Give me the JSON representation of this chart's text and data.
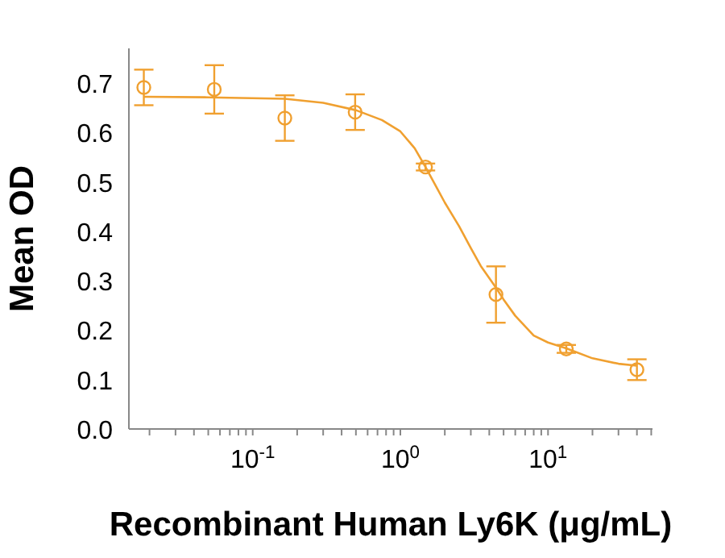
{
  "chart_data": {
    "type": "scatter",
    "xlabel": "Recombinant Human Ly6K (μg/mL)",
    "ylabel": "Mean OD",
    "log": "x",
    "xlim": [
      0.0145,
      51
    ],
    "xticks": [
      {
        "value": 0.02,
        "label": null
      },
      {
        "value": 0.03,
        "label": null
      },
      {
        "value": 0.04,
        "label": null
      },
      {
        "value": 0.05,
        "label": null
      },
      {
        "value": 0.06,
        "label": null
      },
      {
        "value": 0.07,
        "label": null
      },
      {
        "value": 0.08,
        "label": null
      },
      {
        "value": 0.09,
        "label": null
      },
      {
        "value": 0.1,
        "label": "10$^{-1}$"
      },
      {
        "value": 0.2,
        "label": null
      },
      {
        "value": 0.3,
        "label": null
      },
      {
        "value": 0.4,
        "label": null
      },
      {
        "value": 0.5,
        "label": null
      },
      {
        "value": 0.6,
        "label": null
      },
      {
        "value": 0.7,
        "label": null
      },
      {
        "value": 0.8,
        "label": null
      },
      {
        "value": 0.9,
        "label": null
      },
      {
        "value": 1,
        "label": "10$^{0}$"
      },
      {
        "value": 2,
        "label": null
      },
      {
        "value": 3,
        "label": null
      },
      {
        "value": 4,
        "label": null
      },
      {
        "value": 5,
        "label": null
      },
      {
        "value": 6,
        "label": null
      },
      {
        "value": 7,
        "label": null
      },
      {
        "value": 8,
        "label": null
      },
      {
        "value": 9,
        "label": null
      },
      {
        "value": 10,
        "label": "10$^{1}$"
      },
      {
        "value": 20,
        "label": null
      },
      {
        "value": 30,
        "label": null
      },
      {
        "value": 40,
        "label": null
      },
      {
        "value": 50,
        "label": null
      }
    ],
    "ylim": [
      0,
      0.77
    ],
    "yticks": [
      {
        "value": 0,
        "label": "0.0"
      },
      0.1,
      0.2,
      0.3,
      0.4,
      0.5,
      0.6,
      0.7
    ],
    "marker": "circle",
    "series": [
      {
        "color": "#f0a030",
        "x": [
          0.0183,
          0.0549,
          0.165,
          0.494,
          1.48,
          4.44,
          13.3,
          40
        ],
        "values": [
          0.691,
          0.687,
          0.629,
          0.641,
          0.53,
          0.272,
          0.162,
          0.12
        ],
        "errors": [
          0.036,
          0.049,
          0.046,
          0.036,
          0.007,
          0.057,
          0.008,
          0.021
        ]
      },
      {
        "type": "line",
        "color": "#f0a030",
        "marker": "none",
        "line_style": "solid",
        "x": [
          0.0183,
          0.05,
          0.165,
          0.3,
          0.5,
          0.75,
          1,
          1.25,
          1.48,
          1.75,
          2,
          2.5,
          3,
          3.5,
          4.44,
          5,
          6,
          8,
          10,
          13.3,
          20,
          30,
          40
        ],
        "values": [
          0.672,
          0.671,
          0.668,
          0.66,
          0.645,
          0.625,
          0.602,
          0.568,
          0.53,
          0.49,
          0.458,
          0.41,
          0.366,
          0.33,
          0.286,
          0.262,
          0.229,
          0.189,
          0.175,
          0.163,
          0.143,
          0.132,
          0.128
        ]
      }
    ]
  }
}
